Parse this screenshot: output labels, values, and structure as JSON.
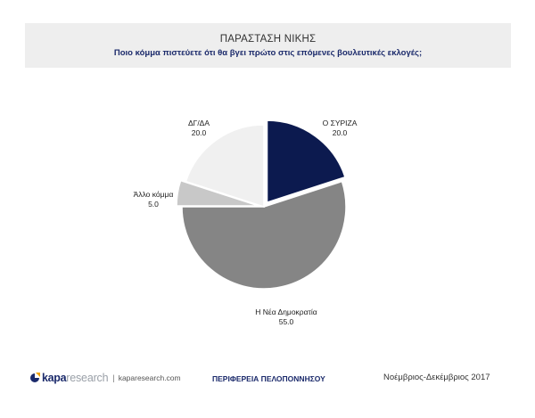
{
  "header": {
    "title": "ΠΑΡΑΣΤΑΣΗ ΝΙΚΗΣ",
    "subtitle": "Ποιο κόμμα πιστεύετε ότι θα βγει πρώτο στις επόμενες βουλευτικές εκλογές;"
  },
  "chart_data": {
    "type": "pie",
    "title": "ΠΑΡΑΣΤΑΣΗ ΝΙΚΗΣ",
    "subtitle": "Ποιο κόμμα πιστεύετε ότι θα βγει πρώτο στις επόμενες βουλευτικές εκλογές;",
    "slices": [
      {
        "label": "Ο ΣΥΡΙΖΑ",
        "value": 20.0,
        "value_text": "20.0",
        "color": "#0c1a4f",
        "exploded": true
      },
      {
        "label": "Η Νέα Δημοκρατία",
        "value": 55.0,
        "value_text": "55.0",
        "color": "#858585",
        "exploded": false
      },
      {
        "label": "Άλλο κόμμα",
        "value": 5.0,
        "value_text": "5.0",
        "color": "#c8c8c8",
        "exploded": true
      },
      {
        "label": "ΔΓ/ΔΑ",
        "value": 20.0,
        "value_text": "20.0",
        "color": "#f0f0f0",
        "exploded": false
      }
    ],
    "legend": "none"
  },
  "footer": {
    "logo_kapa": "kapa",
    "logo_research": "research",
    "logo_url": "kaparesearch.com",
    "region": "ΠΕΡΙΦΕΡΕΙΑ ΠΕΛΟΠΟΝΝΗΣΟΥ",
    "period": "Νοέμβριος-Δεκέμβριος 2017"
  },
  "colors": {
    "brand_navy": "#1b2a6b",
    "header_bg": "#eeeeee"
  }
}
